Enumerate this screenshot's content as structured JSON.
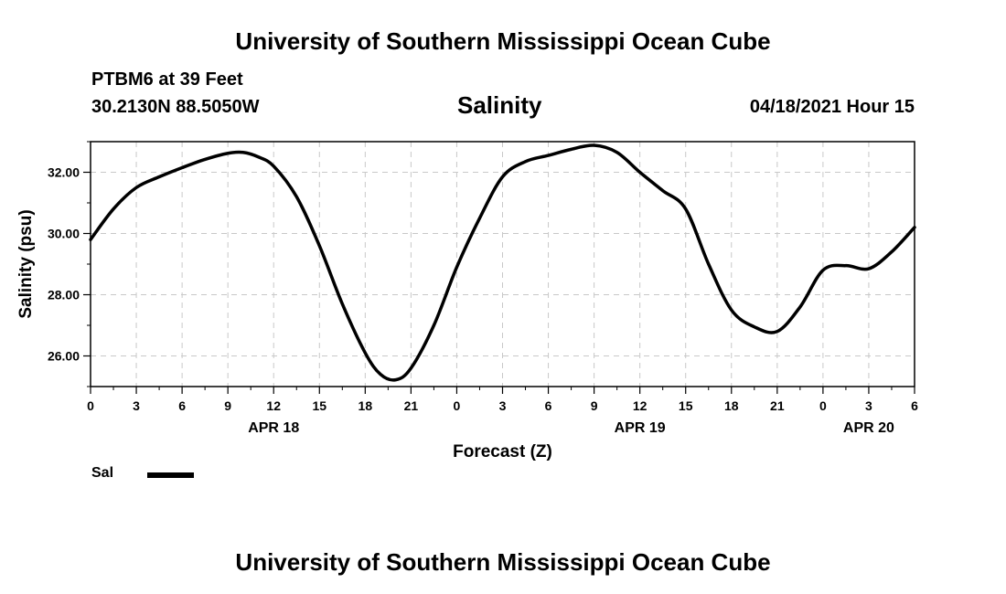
{
  "page": {
    "title_top": "University of Southern Mississippi Ocean Cube",
    "title_bottom": "University of Southern Mississippi Ocean Cube",
    "station": "PTBM6 at 39 Feet",
    "coords": "30.2130N  88.5050W",
    "datetime": "04/18/2021 Hour 15"
  },
  "legend": {
    "label": "Sal",
    "color": "#000000"
  },
  "chart_data": {
    "type": "line",
    "title": "Salinity",
    "xlabel": "Forecast (Z)",
    "ylabel": "Salinity (psu)",
    "xlim": [
      0,
      54
    ],
    "ylim": [
      25.0,
      33.0
    ],
    "x_ticks": [
      0,
      3,
      6,
      9,
      12,
      15,
      18,
      21,
      24,
      27,
      30,
      33,
      36,
      39,
      42,
      45,
      48,
      51,
      54
    ],
    "x_tick_labels": [
      "0",
      "3",
      "6",
      "9",
      "12",
      "15",
      "18",
      "21",
      "0",
      "3",
      "6",
      "9",
      "12",
      "15",
      "18",
      "21",
      "0",
      "3",
      "6"
    ],
    "x_minor_step": 1.5,
    "day_labels": [
      {
        "x": 12,
        "label": "APR 18"
      },
      {
        "x": 36,
        "label": "APR 19"
      },
      {
        "x": 51,
        "label": "APR 20"
      }
    ],
    "y_ticks": [
      26,
      28,
      30,
      32
    ],
    "y_tick_labels": [
      "26.00",
      "28.00",
      "30.00",
      "32.00"
    ],
    "y_minor_step": 1,
    "grid": true,
    "series": [
      {
        "name": "Sal",
        "color": "#000000",
        "x": [
          0,
          1.5,
          3,
          4.5,
          6,
          7.5,
          9,
          10,
          11,
          12,
          13.5,
          15,
          16.5,
          18,
          19,
          20,
          21,
          22.5,
          24,
          25.5,
          27,
          28.5,
          30,
          31.5,
          33,
          34.5,
          36,
          37.5,
          39,
          40.5,
          42,
          43.5,
          45,
          46.5,
          48,
          49.5,
          51,
          52.5,
          54
        ],
        "values": [
          29.8,
          30.8,
          31.5,
          31.85,
          32.15,
          32.42,
          32.62,
          32.65,
          32.5,
          32.2,
          31.2,
          29.6,
          27.7,
          26.1,
          25.4,
          25.22,
          25.6,
          27.0,
          28.9,
          30.5,
          31.85,
          32.35,
          32.55,
          32.75,
          32.88,
          32.65,
          32.0,
          31.4,
          30.8,
          29.0,
          27.5,
          26.95,
          26.8,
          27.6,
          28.8,
          28.95,
          28.85,
          29.4,
          30.2
        ]
      }
    ]
  }
}
